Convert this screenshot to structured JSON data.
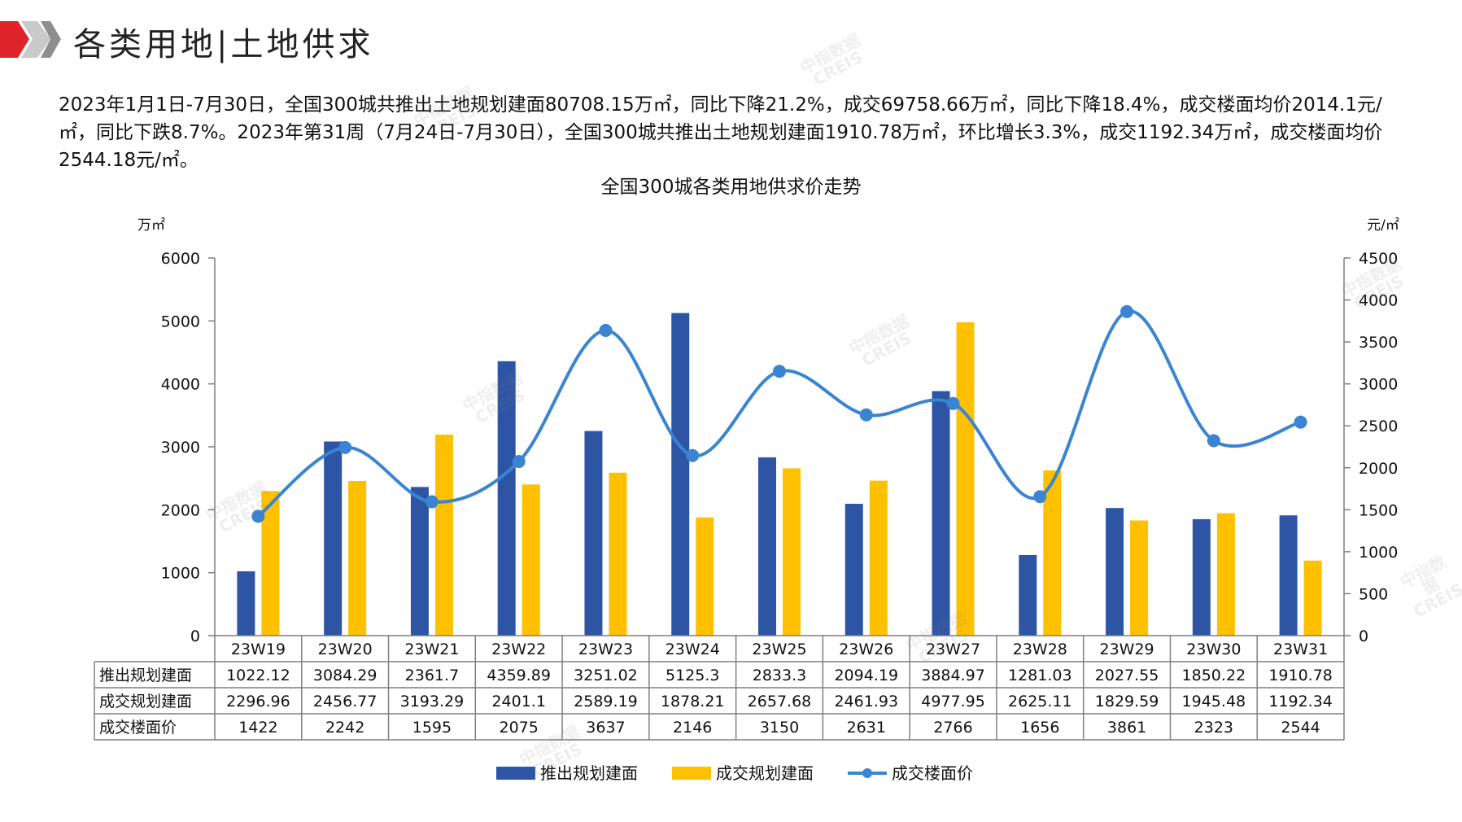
{
  "header": {
    "title": "各类用地|土地供求"
  },
  "summary": "2023年1月1日-7月30日，全国300城共推出土地规划建面80708.15万㎡，同比下降21.2%，成交69758.66万㎡，同比下降18.4%，成交楼面均价2014.1元/㎡，同比下跌8.7%。2023年第31周（7月24日-7月30日），全国300城共推出土地规划建面1910.78万㎡，环比增长3.3%，成交1192.34万㎡，成交楼面均价2544.18元/㎡。",
  "watermark": {
    "line1": "中指数据",
    "line2": "CREIS"
  },
  "colors": {
    "supply": "#2E55A4",
    "deal": "#FFC000",
    "price": "#3A84D1",
    "brand_red": "#E0242B"
  },
  "chart_data": {
    "type": "bar+line",
    "title": "全国300城各类用地供求价走势",
    "y_left_unit": "万㎡",
    "y_right_unit": "元/㎡",
    "y_left_lim": [
      0,
      6000
    ],
    "y_right_lim": [
      0,
      4500
    ],
    "y_left_ticks": [
      0,
      1000,
      2000,
      3000,
      4000,
      5000,
      6000
    ],
    "y_right_ticks": [
      0,
      500,
      1000,
      1500,
      2000,
      2500,
      3000,
      3500,
      4000,
      4500
    ],
    "categories": [
      "23W19",
      "23W20",
      "23W21",
      "23W22",
      "23W23",
      "23W24",
      "23W25",
      "23W26",
      "23W27",
      "23W28",
      "23W29",
      "23W30",
      "23W31"
    ],
    "series": [
      {
        "name": "推出规划建面",
        "type": "bar",
        "axis": "left",
        "values": [
          1022.12,
          3084.29,
          2361.7,
          4359.89,
          3251.02,
          5125.3,
          2833.3,
          2094.19,
          3884.97,
          1281.03,
          2027.55,
          1850.22,
          1910.78
        ],
        "labels": [
          "1022.12",
          "3084.29",
          "2361.7",
          "4359.89",
          "3251.02",
          "5125.3",
          "2833.3",
          "2094.19",
          "3884.97",
          "1281.03",
          "2027.55",
          "1850.22",
          "1910.78"
        ]
      },
      {
        "name": "成交规划建面",
        "type": "bar",
        "axis": "left",
        "values": [
          2296.96,
          2456.77,
          3193.29,
          2401.1,
          2589.19,
          1878.21,
          2657.68,
          2461.93,
          4977.95,
          2625.11,
          1829.59,
          1945.48,
          1192.34
        ],
        "labels": [
          "2296.96",
          "2456.77",
          "3193.29",
          "2401.1",
          "2589.19",
          "1878.21",
          "2657.68",
          "2461.93",
          "4977.95",
          "2625.11",
          "1829.59",
          "1945.48",
          "1192.34"
        ]
      },
      {
        "name": "成交楼面价",
        "type": "line",
        "axis": "right",
        "values": [
          1422,
          2242,
          1595,
          2075,
          3637,
          2146,
          3150,
          2631,
          2766,
          1656,
          3861,
          2323,
          2544
        ],
        "labels": [
          "1422",
          "2242",
          "1595",
          "2075",
          "3637",
          "2146",
          "3150",
          "2631",
          "2766",
          "1656",
          "3861",
          "2323",
          "2544"
        ]
      }
    ],
    "legend_position": "bottom",
    "grid": false
  }
}
